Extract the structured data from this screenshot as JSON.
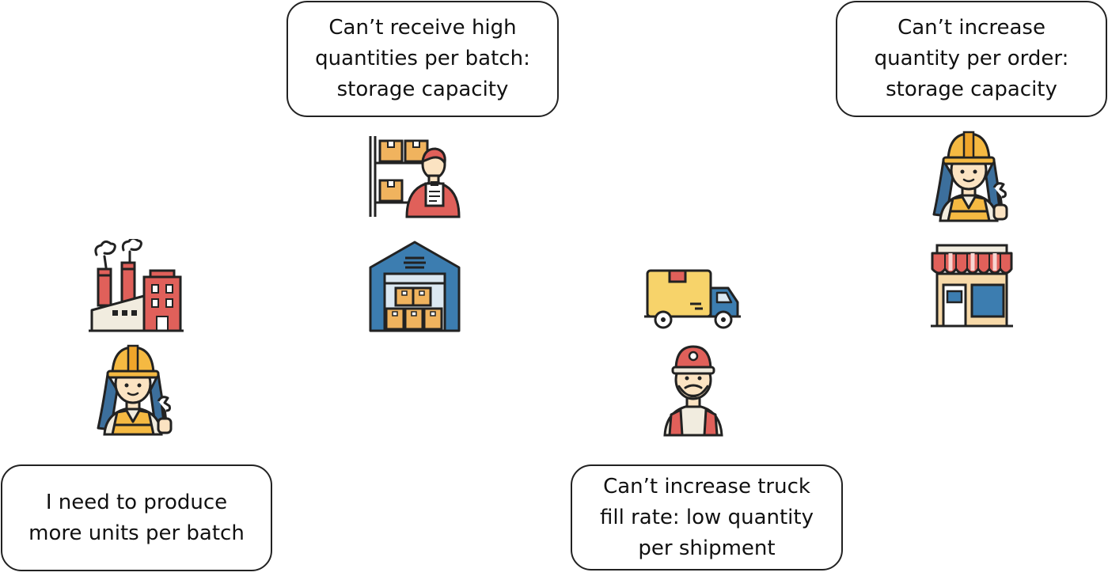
{
  "bubbles": {
    "warehouse": [
      "Can’t receive high",
      "quantities per batch:",
      "storage capacity"
    ],
    "retailer": [
      "Can’t increase",
      "quantity per order:",
      "storage capacity"
    ],
    "factory": [
      "I need to produce",
      "more units per batch"
    ],
    "transport": [
      "Can’t increase truck",
      "fill rate: low quantity",
      "per shipment"
    ]
  },
  "icons": {
    "factory": "factory-icon",
    "female_worker": "female-worker-icon",
    "warehouse_clerk": "warehouse-clerk-icon",
    "warehouse": "warehouse-building-icon",
    "truck": "delivery-truck-icon",
    "driver": "truck-driver-icon",
    "store": "store-icon"
  },
  "colors": {
    "outline": "#222222",
    "hardhat": "#f5b942",
    "vest": "#f5b942",
    "red": "#e0605a",
    "blue": "#3c7db0",
    "box": "#f0b35e",
    "truck_body": "#f7d36a",
    "skin": "#fbe3c2"
  }
}
